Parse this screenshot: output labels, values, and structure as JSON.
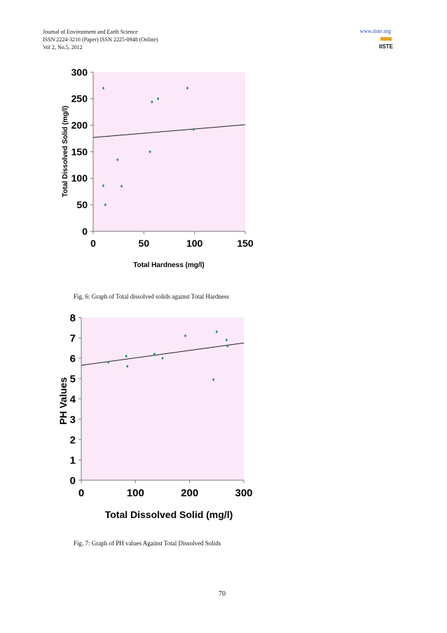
{
  "header": {
    "journal": "Journal of Environment and Earth Science",
    "issn": "ISSN 2224-3216 (Paper) ISSN 2225-0948 (Online)",
    "volume": "Vol 2, No.5, 2012",
    "url": "www.iiste.org",
    "logo_text": "IISTE"
  },
  "page_number": "70",
  "figures": [
    {
      "caption": "Fig. 6: Graph of Total dissolved solids against Total Hardness"
    },
    {
      "caption": "Fig. 7: Graph of PH values Against Total Dissolved Solids"
    }
  ],
  "chart_data": [
    {
      "type": "scatter",
      "title": "",
      "xlabel": "Total Hardness (mg/l)",
      "ylabel": "Total Dissolved Solid (mg/l)",
      "xlim": [
        0,
        150
      ],
      "ylim": [
        0,
        300
      ],
      "xticks": [
        "0",
        "50",
        "100",
        "150"
      ],
      "yticks": [
        "0",
        "50",
        "100",
        "150",
        "200",
        "250",
        "300"
      ],
      "points": [
        {
          "x": 10,
          "y": 270
        },
        {
          "x": 10,
          "y": 86
        },
        {
          "x": 12,
          "y": 50
        },
        {
          "x": 24,
          "y": 135
        },
        {
          "x": 28,
          "y": 85
        },
        {
          "x": 56,
          "y": 150
        },
        {
          "x": 58,
          "y": 244
        },
        {
          "x": 64,
          "y": 250
        },
        {
          "x": 93,
          "y": 270
        },
        {
          "x": 99,
          "y": 192
        }
      ],
      "trendline": {
        "x": [
          0,
          150
        ],
        "y": [
          177,
          201
        ]
      },
      "grid": false,
      "plot_background": "#fbe8f8"
    },
    {
      "type": "scatter",
      "title": "",
      "xlabel": "Total Dissolved Solid (mg/l)",
      "ylabel": "PH Values",
      "xlim": [
        0,
        300
      ],
      "ylim": [
        0,
        8
      ],
      "xticks": [
        "0",
        "100",
        "200",
        "300"
      ],
      "yticks": [
        "0",
        "1",
        "2",
        "3",
        "4",
        "5",
        "6",
        "7",
        "8"
      ],
      "points": [
        {
          "x": 50,
          "y": 5.8
        },
        {
          "x": 83,
          "y": 6.1
        },
        {
          "x": 85,
          "y": 5.6
        },
        {
          "x": 135,
          "y": 6.2
        },
        {
          "x": 150,
          "y": 6.0
        },
        {
          "x": 192,
          "y": 7.1
        },
        {
          "x": 244,
          "y": 4.95
        },
        {
          "x": 250,
          "y": 7.3
        },
        {
          "x": 268,
          "y": 6.9
        },
        {
          "x": 270,
          "y": 6.6
        }
      ],
      "trendline": {
        "x": [
          0,
          300
        ],
        "y": [
          5.65,
          6.75
        ]
      },
      "grid": false,
      "plot_background": "#fbe8f8"
    }
  ]
}
